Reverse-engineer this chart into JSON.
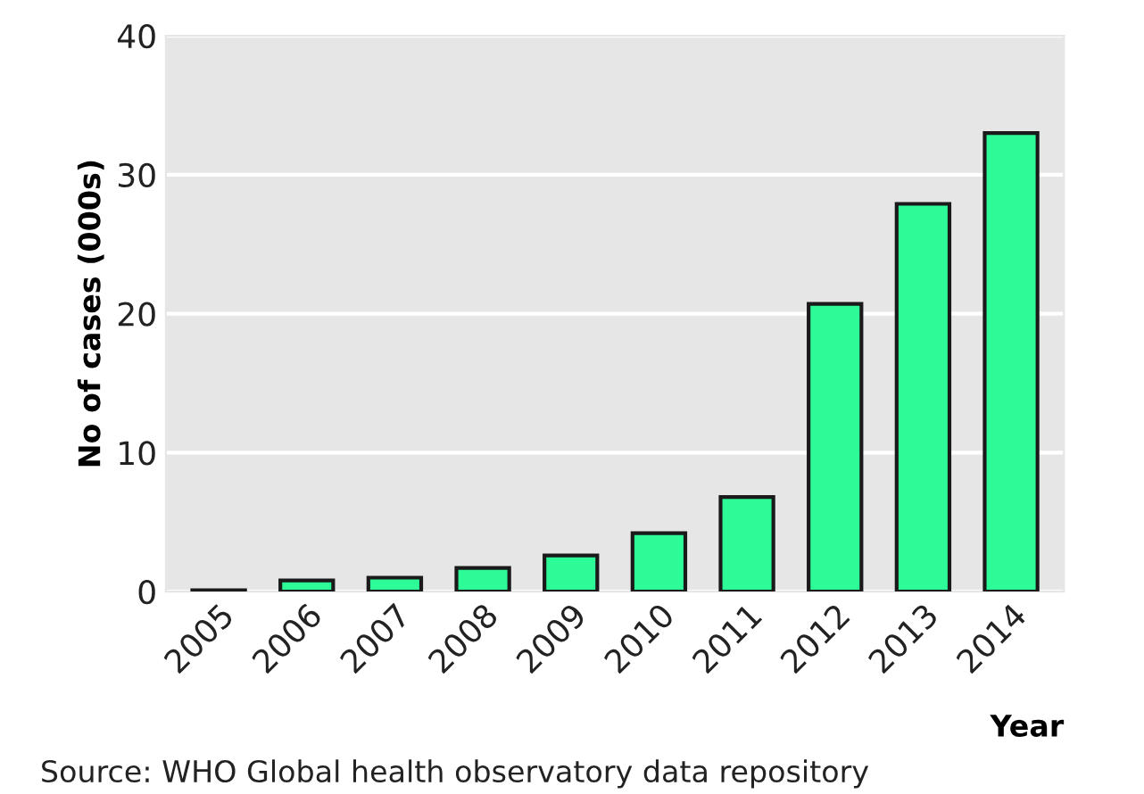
{
  "chart_data": {
    "type": "bar",
    "ylabel": "No of cases (000s)",
    "xlabel": "Year",
    "categories": [
      "2005",
      "2006",
      "2007",
      "2008",
      "2009",
      "2010",
      "2011",
      "2012",
      "2013",
      "2014"
    ],
    "values": [
      0.1,
      0.8,
      1.0,
      1.7,
      2.6,
      4.2,
      6.8,
      20.7,
      27.9,
      33.0
    ],
    "color": "#2cfb98",
    "ylim": [
      0,
      40
    ],
    "yticks": [
      0,
      10,
      20,
      30,
      40
    ],
    "grid": "y",
    "annotations": [
      "Source: WHO Global health observatory data repository"
    ]
  }
}
